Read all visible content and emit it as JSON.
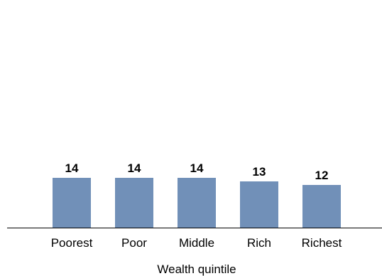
{
  "chart_data": {
    "type": "bar",
    "categories": [
      "Poorest",
      "Poor",
      "Middle",
      "Rich",
      "Richest"
    ],
    "values": [
      14,
      14,
      14,
      13,
      12
    ],
    "title": "",
    "xlabel": "Wealth quintile",
    "ylabel": "",
    "ylim": [
      0,
      40
    ],
    "grid": false,
    "legend": "none",
    "bar_color": "#7190b8"
  }
}
